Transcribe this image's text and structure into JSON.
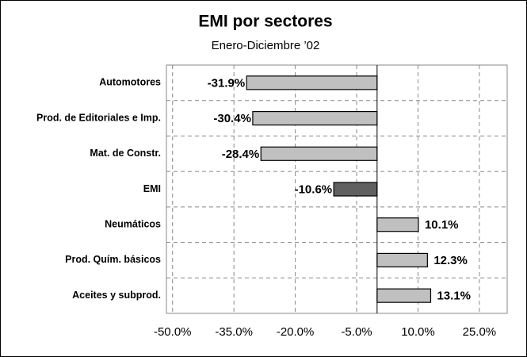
{
  "chart_data": {
    "type": "barh",
    "title": "EMI por sectores",
    "subtitle": "Enero-Diciembre ’02",
    "categories": [
      "Automotores",
      "Prod. de Editoriales e Imp.",
      "Mat. de Constr.",
      "EMI",
      "Neumáticos",
      "Prod. Quím. básicos",
      "Aceites y subprod."
    ],
    "values": [
      -31.9,
      -30.4,
      -28.4,
      -10.6,
      10.1,
      12.3,
      13.1
    ],
    "value_labels": [
      "-31.9%",
      "-30.4%",
      "-28.4%",
      "-10.6%",
      "10.1%",
      "12.3%",
      "13.1%"
    ],
    "colors": [
      "#c0c0c0",
      "#c0c0c0",
      "#c0c0c0",
      "#606060",
      "#c0c0c0",
      "#c0c0c0",
      "#c0c0c0"
    ],
    "xlim": [
      -51.5,
      31.8
    ],
    "xticks": [
      {
        "value": -50,
        "label": "-50.0%"
      },
      {
        "value": -35,
        "label": "-35.0%"
      },
      {
        "value": -20,
        "label": "-20.0%"
      },
      {
        "value": -5,
        "label": "-5.0%"
      },
      {
        "value": 10,
        "label": "10.0%"
      },
      {
        "value": 25,
        "label": "25.0%"
      }
    ],
    "grid": true
  }
}
